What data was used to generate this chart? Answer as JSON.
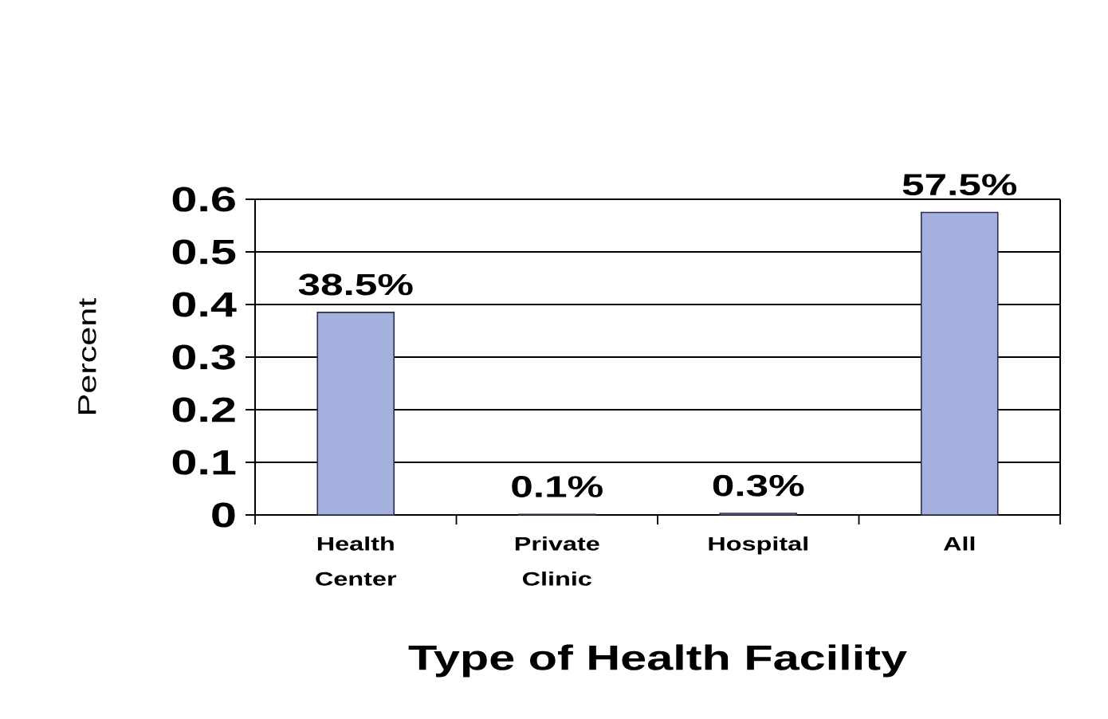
{
  "chart_data": {
    "type": "bar",
    "xlabel": "Type of Health Facility",
    "ylabel": "Percent",
    "categories": [
      "Health Center",
      "Private Clinic",
      "Hospital",
      "All"
    ],
    "values": [
      0.385,
      0.001,
      0.003,
      0.575
    ],
    "value_labels": [
      "38.5%",
      "0.1%",
      "0.3%",
      "57.5%"
    ],
    "color": "#a4b1de",
    "ylim": [
      0,
      0.6
    ],
    "yticks": [
      0,
      0.1,
      0.2,
      0.3,
      0.4,
      0.5,
      0.6
    ],
    "grid": "y"
  }
}
